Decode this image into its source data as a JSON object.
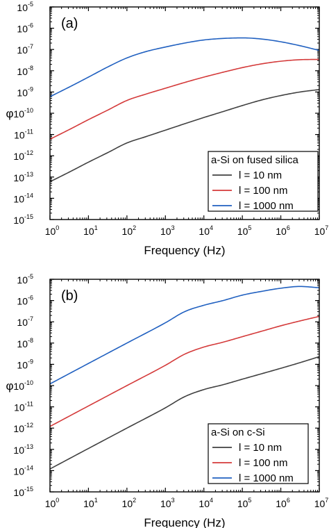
{
  "chart_data": [
    {
      "type": "line",
      "panel_label": "(a)",
      "xlabel": "Frequency (Hz)",
      "ylabel": "φ",
      "x_scale": "log",
      "y_scale": "log",
      "xlim": [
        1,
        10000000
      ],
      "ylim": [
        1e-15,
        1e-05
      ],
      "x_ticks": [
        {
          "value": 1,
          "base": "10",
          "exp": "0"
        },
        {
          "value": 10,
          "base": "10",
          "exp": "1"
        },
        {
          "value": 100,
          "base": "10",
          "exp": "2"
        },
        {
          "value": 1000,
          "base": "10",
          "exp": "3"
        },
        {
          "value": 10000,
          "base": "10",
          "exp": "4"
        },
        {
          "value": 100000,
          "base": "10",
          "exp": "5"
        },
        {
          "value": 1000000,
          "base": "10",
          "exp": "6"
        },
        {
          "value": 10000000,
          "base": "10",
          "exp": "7"
        }
      ],
      "y_ticks": [
        {
          "value": 1e-15,
          "base": "10",
          "exp": "-15"
        },
        {
          "value": 1e-14,
          "base": "10",
          "exp": "-14"
        },
        {
          "value": 1e-13,
          "base": "10",
          "exp": "-13"
        },
        {
          "value": 1e-12,
          "base": "10",
          "exp": "-12"
        },
        {
          "value": 1e-11,
          "base": "10",
          "exp": "-11"
        },
        {
          "value": 1e-10,
          "base": "10",
          "exp": "-10"
        },
        {
          "value": 1e-09,
          "base": "10",
          "exp": "-9"
        },
        {
          "value": 1e-08,
          "base": "10",
          "exp": "-8"
        },
        {
          "value": 1e-07,
          "base": "10",
          "exp": "-7"
        },
        {
          "value": 1e-06,
          "base": "10",
          "exp": "-6"
        },
        {
          "value": 1e-05,
          "base": "10",
          "exp": "-5"
        }
      ],
      "grid": false,
      "legend": {
        "title": "a-Si on fused silica",
        "placement": "bottom-right"
      },
      "series": [
        {
          "name": "l = 10 nm",
          "color": "#404040",
          "x": [
            1,
            3.16,
            10,
            31.6,
            100,
            316,
            1000,
            3162,
            10000,
            31623,
            100000,
            316228,
            1000000,
            3162278,
            10000000
          ],
          "y": [
            6e-14,
            1.7e-13,
            5e-13,
            1.4e-12,
            4e-12,
            8e-12,
            1.6e-11,
            3.2e-11,
            6.3e-11,
            1.2e-10,
            2.3e-10,
            4.2e-10,
            6.8e-10,
            1e-09,
            1.3e-09
          ]
        },
        {
          "name": "l = 100 nm",
          "color": "#d43a3a",
          "x": [
            1,
            3.16,
            10,
            31.6,
            100,
            316,
            1000,
            3162,
            10000,
            31623,
            100000,
            316228,
            1000000,
            3162278,
            10000000
          ],
          "y": [
            6e-12,
            1.7e-11,
            5e-11,
            1.4e-10,
            4e-10,
            8e-10,
            1.5e-09,
            2.8e-09,
            5e-09,
            8.5e-09,
            1.4e-08,
            2.1e-08,
            2.8e-08,
            3.3e-08,
            3.4e-08
          ]
        },
        {
          "name": "l = 1000 nm",
          "color": "#2060c0",
          "x": [
            1,
            3.16,
            10,
            31.6,
            100,
            316,
            1000,
            3162,
            10000,
            31623,
            100000,
            316228,
            1000000,
            3162278,
            10000000
          ],
          "y": [
            6e-10,
            1.7e-09,
            5e-09,
            1.5e-08,
            4e-08,
            8e-08,
            1.3e-07,
            2e-07,
            2.8e-07,
            3.3e-07,
            3.5e-07,
            3.1e-07,
            2.3e-07,
            1.5e-07,
            9e-08
          ]
        }
      ]
    },
    {
      "type": "line",
      "panel_label": "(b)",
      "xlabel": "Frequency (Hz)",
      "ylabel": "φ",
      "x_scale": "log",
      "y_scale": "log",
      "xlim": [
        1,
        10000000
      ],
      "ylim": [
        1e-15,
        1e-05
      ],
      "x_ticks": [
        {
          "value": 1,
          "base": "10",
          "exp": "0"
        },
        {
          "value": 10,
          "base": "10",
          "exp": "1"
        },
        {
          "value": 100,
          "base": "10",
          "exp": "2"
        },
        {
          "value": 1000,
          "base": "10",
          "exp": "3"
        },
        {
          "value": 10000,
          "base": "10",
          "exp": "4"
        },
        {
          "value": 100000,
          "base": "10",
          "exp": "5"
        },
        {
          "value": 1000000,
          "base": "10",
          "exp": "6"
        },
        {
          "value": 10000000,
          "base": "10",
          "exp": "7"
        }
      ],
      "y_ticks": [
        {
          "value": 1e-15,
          "base": "10",
          "exp": "-15"
        },
        {
          "value": 1e-14,
          "base": "10",
          "exp": "-14"
        },
        {
          "value": 1e-13,
          "base": "10",
          "exp": "-13"
        },
        {
          "value": 1e-12,
          "base": "10",
          "exp": "-12"
        },
        {
          "value": 1e-11,
          "base": "10",
          "exp": "-11"
        },
        {
          "value": 1e-10,
          "base": "10",
          "exp": "-10"
        },
        {
          "value": 1e-09,
          "base": "10",
          "exp": "-9"
        },
        {
          "value": 1e-08,
          "base": "10",
          "exp": "-8"
        },
        {
          "value": 1e-07,
          "base": "10",
          "exp": "-7"
        },
        {
          "value": 1e-06,
          "base": "10",
          "exp": "-6"
        },
        {
          "value": 1e-05,
          "base": "10",
          "exp": "-5"
        }
      ],
      "grid": false,
      "legend": {
        "title": "a-Si on c-Si",
        "placement": "bottom-right"
      },
      "series": [
        {
          "name": "l = 10 nm",
          "color": "#404040",
          "x": [
            1,
            10,
            100,
            1000,
            3162,
            10000,
            31623,
            100000,
            316228,
            1000000,
            3162278,
            10000000
          ],
          "y": [
            1.2e-14,
            1.1e-13,
            1e-12,
            9e-12,
            3e-11,
            6.5e-11,
            1.1e-10,
            2e-10,
            3.6e-10,
            6.5e-10,
            1.2e-09,
            2.3e-09
          ]
        },
        {
          "name": "l = 100 nm",
          "color": "#d43a3a",
          "x": [
            1,
            10,
            100,
            1000,
            3162,
            10000,
            31623,
            100000,
            316228,
            1000000,
            3162278,
            10000000
          ],
          "y": [
            1.2e-12,
            1.1e-11,
            1e-10,
            9e-10,
            3e-09,
            6.5e-09,
            1.1e-08,
            2e-08,
            3.6e-08,
            6.5e-08,
            1.1e-07,
            1.8e-07
          ]
        },
        {
          "name": "l = 1000 nm",
          "color": "#2060c0",
          "x": [
            1,
            10,
            100,
            1000,
            3162,
            10000,
            31623,
            100000,
            316228,
            1000000,
            3162278,
            10000000
          ],
          "y": [
            1.2e-10,
            1.1e-09,
            1e-08,
            9e-08,
            3e-07,
            6e-07,
            1e-06,
            1.8e-06,
            2.7e-06,
            3.8e-06,
            4.6e-06,
            4e-06
          ]
        }
      ]
    }
  ]
}
